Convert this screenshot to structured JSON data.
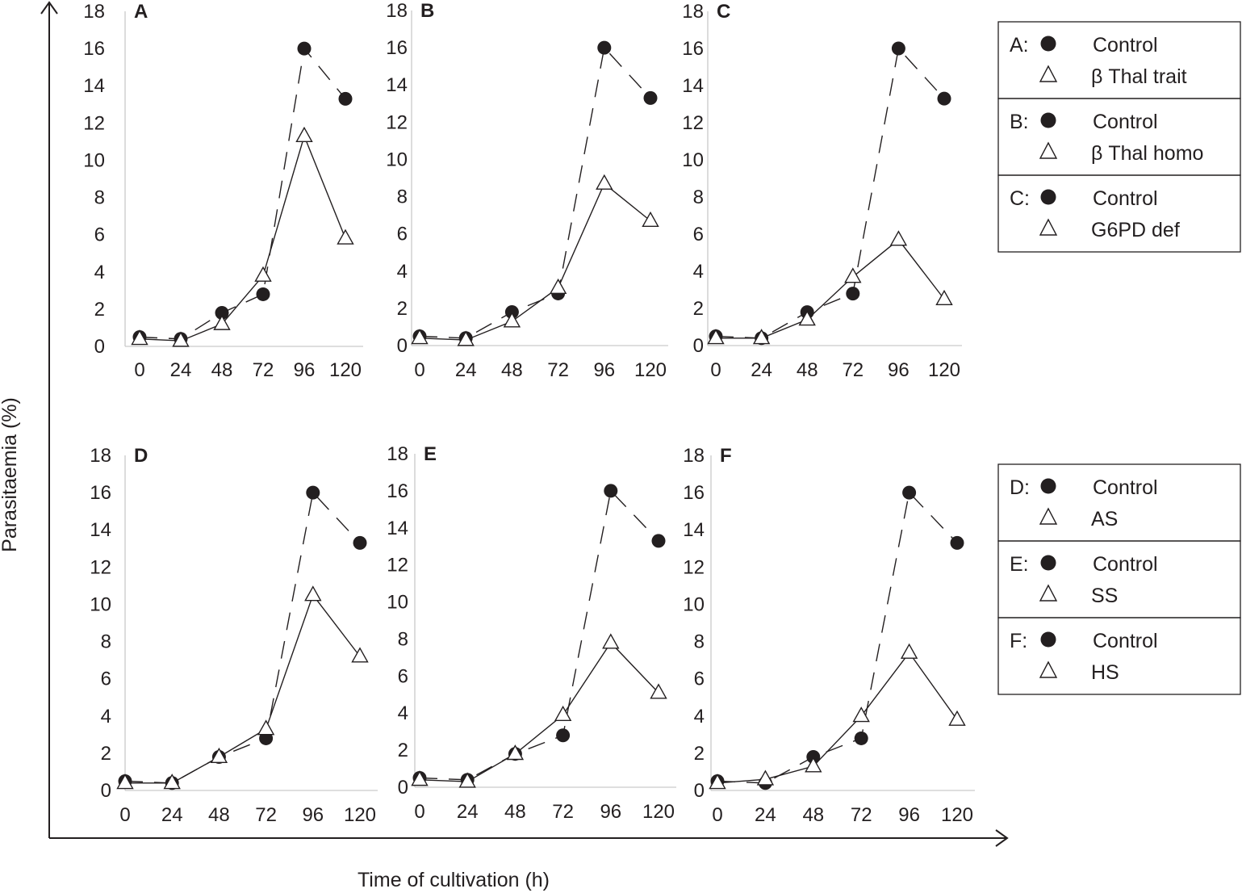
{
  "figure": {
    "y_axis_title": "Parasitaemia (%)",
    "x_axis_title": "Time of cultivation (h)"
  },
  "legend": [
    {
      "prefix": "A:",
      "control_label": "Control",
      "test_label": "β Thal trait"
    },
    {
      "prefix": "B:",
      "control_label": "Control",
      "test_label": "β Thal homo"
    },
    {
      "prefix": "C:",
      "control_label": "Control",
      "test_label": "G6PD def"
    },
    {
      "prefix": "D:",
      "control_label": "Control",
      "test_label": "AS"
    },
    {
      "prefix": "E:",
      "control_label": "Control",
      "test_label": "SS"
    },
    {
      "prefix": "F:",
      "control_label": "Control",
      "test_label": "HS"
    }
  ],
  "chart_data": [
    {
      "type": "line",
      "panel": "A",
      "categories": [
        "0",
        "24",
        "48",
        "72",
        "96",
        "120"
      ],
      "y_ticks": [
        "0",
        "2",
        "4",
        "6",
        "8",
        "10",
        "12",
        "14",
        "16",
        "18"
      ],
      "ylim": [
        0,
        18
      ],
      "series": [
        {
          "name": "Control",
          "marker": "filled-circle",
          "line": "dashed",
          "values": [
            0.5,
            0.4,
            1.8,
            2.8,
            16.0,
            13.3
          ]
        },
        {
          "name": "β Thal trait",
          "marker": "open-triangle",
          "line": "solid",
          "values": [
            0.4,
            0.3,
            1.2,
            3.8,
            11.3,
            5.8
          ]
        }
      ]
    },
    {
      "type": "line",
      "panel": "B",
      "categories": [
        "0",
        "24",
        "48",
        "72",
        "96",
        "120"
      ],
      "y_ticks": [
        "0",
        "2",
        "4",
        "6",
        "8",
        "10",
        "12",
        "14",
        "16",
        "18"
      ],
      "ylim": [
        0,
        18
      ],
      "series": [
        {
          "name": "Control",
          "marker": "filled-circle",
          "line": "dashed",
          "values": [
            0.5,
            0.4,
            1.8,
            2.8,
            16.0,
            13.3
          ]
        },
        {
          "name": "β Thal homo",
          "marker": "open-triangle",
          "line": "solid",
          "values": [
            0.4,
            0.3,
            1.3,
            3.1,
            8.7,
            6.7
          ]
        }
      ]
    },
    {
      "type": "line",
      "panel": "C",
      "categories": [
        "0",
        "24",
        "48",
        "72",
        "96",
        "120"
      ],
      "y_ticks": [
        "0",
        "2",
        "4",
        "6",
        "8",
        "10",
        "12",
        "14",
        "16",
        "18"
      ],
      "ylim": [
        0,
        18
      ],
      "series": [
        {
          "name": "Control",
          "marker": "filled-circle",
          "line": "dashed",
          "values": [
            0.5,
            0.4,
            1.8,
            2.8,
            16.0,
            13.3
          ]
        },
        {
          "name": "G6PD def",
          "marker": "open-triangle",
          "line": "solid",
          "values": [
            0.4,
            0.4,
            1.4,
            3.7,
            5.7,
            2.5
          ]
        }
      ]
    },
    {
      "type": "line",
      "panel": "D",
      "categories": [
        "0",
        "24",
        "48",
        "72",
        "96",
        "120"
      ],
      "y_ticks": [
        "0",
        "2",
        "4",
        "6",
        "8",
        "10",
        "12",
        "14",
        "16",
        "18"
      ],
      "ylim": [
        0,
        18
      ],
      "series": [
        {
          "name": "Control",
          "marker": "filled-circle",
          "line": "dashed",
          "values": [
            0.5,
            0.4,
            1.8,
            2.8,
            16.0,
            13.3
          ]
        },
        {
          "name": "AS",
          "marker": "open-triangle",
          "line": "solid",
          "values": [
            0.4,
            0.4,
            1.8,
            3.3,
            10.5,
            7.2
          ]
        }
      ]
    },
    {
      "type": "line",
      "panel": "E",
      "categories": [
        "0",
        "24",
        "48",
        "72",
        "96",
        "120"
      ],
      "y_ticks": [
        "0",
        "2",
        "4",
        "6",
        "8",
        "10",
        "12",
        "14",
        "16",
        "18"
      ],
      "ylim": [
        0,
        18
      ],
      "series": [
        {
          "name": "Control",
          "marker": "filled-circle",
          "line": "dashed",
          "values": [
            0.5,
            0.4,
            1.8,
            2.8,
            16.0,
            13.3
          ]
        },
        {
          "name": "SS",
          "marker": "open-triangle",
          "line": "solid",
          "values": [
            0.4,
            0.3,
            1.8,
            3.9,
            7.8,
            5.1
          ]
        }
      ]
    },
    {
      "type": "line",
      "panel": "F",
      "categories": [
        "0",
        "24",
        "48",
        "72",
        "96",
        "120"
      ],
      "y_ticks": [
        "0",
        "2",
        "4",
        "6",
        "8",
        "10",
        "12",
        "14",
        "16",
        "18"
      ],
      "ylim": [
        0,
        18
      ],
      "series": [
        {
          "name": "Control",
          "marker": "filled-circle",
          "line": "dashed",
          "values": [
            0.5,
            0.4,
            1.8,
            2.8,
            16.0,
            13.3
          ]
        },
        {
          "name": "HS",
          "marker": "open-triangle",
          "line": "solid",
          "values": [
            0.4,
            0.6,
            1.3,
            4.0,
            7.4,
            3.8
          ]
        }
      ]
    }
  ]
}
